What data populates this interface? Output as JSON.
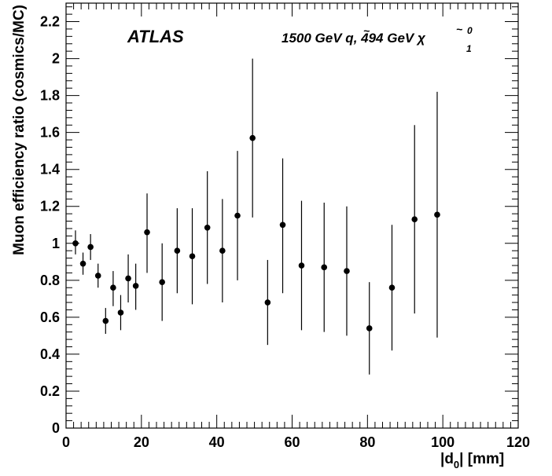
{
  "chart_data": {
    "type": "scatter",
    "experiment_label": "ATLAS",
    "model_label": {
      "squark_mass": "1500 GeV",
      "squark_symbol": "q",
      "neutralino_mass": "494 GeV",
      "neutralino_symbol": "χ",
      "neutralino_superscript": "0",
      "neutralino_subscript": "1"
    },
    "xlabel": {
      "pre": "|d",
      "sub": "0",
      "post": "| [mm]"
    },
    "ylabel": "Muon efficiency ratio (cosmics/MC)",
    "xlim": [
      0,
      120
    ],
    "ylim": [
      0,
      2.3
    ],
    "x_ticks": [
      "0",
      "20",
      "40",
      "60",
      "80",
      "100",
      "120"
    ],
    "y_ticks": [
      "0",
      "0.2",
      "0.4",
      "0.6",
      "0.8",
      "1",
      "1.2",
      "1.4",
      "1.6",
      "1.8",
      "2",
      "2.2"
    ],
    "grid": false,
    "legend": "none",
    "marker_color": "#000000",
    "points": [
      {
        "x": 2.5,
        "y": 1.0,
        "ylow": 0.94,
        "yhigh": 1.07
      },
      {
        "x": 4.5,
        "y": 0.89,
        "ylow": 0.83,
        "yhigh": 0.95
      },
      {
        "x": 6.5,
        "y": 0.98,
        "ylow": 0.91,
        "yhigh": 1.05
      },
      {
        "x": 8.5,
        "y": 0.825,
        "ylow": 0.76,
        "yhigh": 0.89
      },
      {
        "x": 10.5,
        "y": 0.58,
        "ylow": 0.51,
        "yhigh": 0.65
      },
      {
        "x": 12.5,
        "y": 0.76,
        "ylow": 0.66,
        "yhigh": 0.85
      },
      {
        "x": 14.5,
        "y": 0.625,
        "ylow": 0.53,
        "yhigh": 0.72
      },
      {
        "x": 16.5,
        "y": 0.81,
        "ylow": 0.68,
        "yhigh": 0.94
      },
      {
        "x": 18.5,
        "y": 0.77,
        "ylow": 0.64,
        "yhigh": 0.89
      },
      {
        "x": 21.5,
        "y": 1.06,
        "ylow": 0.84,
        "yhigh": 1.27
      },
      {
        "x": 25.5,
        "y": 0.79,
        "ylow": 0.58,
        "yhigh": 1.0
      },
      {
        "x": 29.5,
        "y": 0.96,
        "ylow": 0.73,
        "yhigh": 1.19
      },
      {
        "x": 33.5,
        "y": 0.93,
        "ylow": 0.67,
        "yhigh": 1.19
      },
      {
        "x": 37.5,
        "y": 1.085,
        "ylow": 0.78,
        "yhigh": 1.39
      },
      {
        "x": 41.5,
        "y": 0.96,
        "ylow": 0.68,
        "yhigh": 1.24
      },
      {
        "x": 45.5,
        "y": 1.15,
        "ylow": 0.8,
        "yhigh": 1.5
      },
      {
        "x": 49.5,
        "y": 1.57,
        "ylow": 1.14,
        "yhigh": 2.0
      },
      {
        "x": 53.5,
        "y": 0.68,
        "ylow": 0.45,
        "yhigh": 0.91
      },
      {
        "x": 57.5,
        "y": 1.1,
        "ylow": 0.73,
        "yhigh": 1.46
      },
      {
        "x": 62.5,
        "y": 0.88,
        "ylow": 0.53,
        "yhigh": 1.23
      },
      {
        "x": 68.5,
        "y": 0.87,
        "ylow": 0.52,
        "yhigh": 1.22
      },
      {
        "x": 74.5,
        "y": 0.85,
        "ylow": 0.5,
        "yhigh": 1.2
      },
      {
        "x": 80.5,
        "y": 0.54,
        "ylow": 0.29,
        "yhigh": 0.79
      },
      {
        "x": 86.5,
        "y": 0.76,
        "ylow": 0.42,
        "yhigh": 1.1
      },
      {
        "x": 92.5,
        "y": 1.13,
        "ylow": 0.62,
        "yhigh": 1.64
      },
      {
        "x": 98.5,
        "y": 1.155,
        "ylow": 0.49,
        "yhigh": 1.82
      }
    ]
  }
}
